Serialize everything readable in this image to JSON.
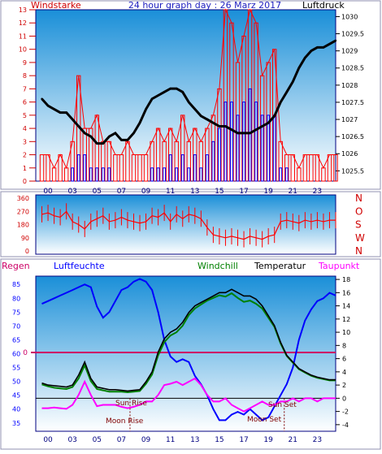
{
  "header": {
    "left_label": "Windstarke",
    "title": "24 hour graph day : 26 Marz 2017",
    "right_label": "Luftdruck"
  },
  "labels": {
    "regen": "Regen",
    "luftfeuchte": "Luftfeuchte",
    "windchill": "Windchill",
    "temperatur": "Temperatur",
    "taupunkt": "Taupunkt",
    "sun_rise": "Sun Rise",
    "moon_rise": "Moon Rise",
    "sun_set": "Sun Set",
    "moon_set": "Moon Set",
    "regen_zero": "0"
  },
  "colors": {
    "title": "#2020c0",
    "wind_axis": "#d00000",
    "wind_gust": "#ff0000",
    "wind_avg": "#0000ff",
    "pressure": "#000000",
    "direction": "#ff0000",
    "humidity": "#0000ff",
    "windchill": "#008000",
    "temperature": "#000000",
    "dewpoint": "#ff00ff",
    "rain": "#cc0066",
    "frame": "#000080",
    "sky_top": "#1a8fd8",
    "sky_bottom": "#ffffff"
  },
  "chart_data": [
    {
      "type": "line",
      "title": "24 hour graph day : 26 Marz 2017",
      "x_ticks": [
        "00",
        "03",
        "05",
        "07",
        "09",
        "11",
        "13",
        "15",
        "17",
        "19",
        "21",
        "23"
      ],
      "x_hours": [
        0.5,
        2.5,
        4.5,
        6.5,
        8.5,
        10.5,
        12.5,
        14.5,
        16.5,
        18.5,
        20.5,
        22.5
      ],
      "xlim": [
        -0.5,
        24
      ],
      "y_left": {
        "label": "Windstarke",
        "ticks": [
          "0",
          "1",
          "2",
          "3",
          "4",
          "5",
          "6",
          "7",
          "8",
          "9",
          "10",
          "11",
          "12",
          "13"
        ],
        "lim": [
          0,
          13
        ]
      },
      "y_right": {
        "label": "Luftdruck",
        "ticks": [
          "1025.5",
          "1026",
          "1026.5",
          "1027",
          "1027.5",
          "1028",
          "1028.5",
          "1029",
          "1029.5",
          "1030"
        ],
        "lim": [
          1025.2,
          1030.2
        ]
      },
      "series": [
        {
          "name": "Luftdruck",
          "axis": "right",
          "x": [
            0,
            0.5,
            1,
            1.5,
            2,
            2.5,
            3,
            3.5,
            4,
            4.5,
            5,
            5.5,
            6,
            6.5,
            7,
            7.5,
            8,
            8.5,
            9,
            9.5,
            10,
            10.5,
            11,
            11.5,
            12,
            12.5,
            13,
            13.5,
            14,
            14.5,
            15,
            15.5,
            16,
            16.5,
            17,
            17.5,
            18,
            18.5,
            19,
            19.5,
            20,
            20.5,
            21,
            21.5,
            22,
            22.5,
            23,
            23.5,
            24
          ],
          "y": [
            1027.6,
            1027.4,
            1027.3,
            1027.2,
            1027.2,
            1027.0,
            1026.8,
            1026.6,
            1026.5,
            1026.3,
            1026.3,
            1026.5,
            1026.6,
            1026.4,
            1026.4,
            1026.6,
            1026.9,
            1027.3,
            1027.6,
            1027.7,
            1027.8,
            1027.9,
            1027.9,
            1027.8,
            1027.5,
            1027.3,
            1027.1,
            1027.0,
            1026.9,
            1026.8,
            1026.8,
            1026.7,
            1026.6,
            1026.6,
            1026.6,
            1026.7,
            1026.8,
            1026.9,
            1027.1,
            1027.5,
            1027.8,
            1028.1,
            1028.5,
            1028.8,
            1029.0,
            1029.1,
            1029.1,
            1029.2,
            1029.3
          ]
        },
        {
          "name": "Windstarke Boen",
          "axis": "left",
          "x": [
            0,
            0.5,
            1,
            1.5,
            2,
            2.5,
            3,
            3.5,
            4,
            4.5,
            5,
            5.5,
            6,
            6.5,
            7,
            7.5,
            8,
            8.5,
            9,
            9.5,
            10,
            10.5,
            11,
            11.5,
            12,
            12.5,
            13,
            13.5,
            14,
            14.5,
            15,
            15.5,
            16,
            16.5,
            17,
            17.5,
            18,
            18.5,
            19,
            19.5,
            20,
            20.5,
            21,
            21.5,
            22,
            22.5,
            23,
            23.5,
            24
          ],
          "y": [
            2,
            2,
            1,
            2,
            1,
            3,
            8,
            4,
            4,
            5,
            3,
            3,
            2,
            2,
            3,
            2,
            2,
            2,
            3,
            4,
            3,
            4,
            3,
            5,
            3,
            4,
            3,
            4,
            5,
            7,
            13,
            12,
            9,
            11,
            13,
            12,
            8,
            9,
            10,
            3,
            2,
            2,
            1,
            2,
            2,
            2,
            1,
            2,
            2
          ]
        },
        {
          "name": "Windstarke Mittel",
          "axis": "left",
          "x": [
            0,
            0.5,
            1,
            1.5,
            2,
            2.5,
            3,
            3.5,
            4,
            4.5,
            5,
            5.5,
            6,
            6.5,
            7,
            7.5,
            8,
            8.5,
            9,
            9.5,
            10,
            10.5,
            11,
            11.5,
            12,
            12.5,
            13,
            13.5,
            14,
            14.5,
            15,
            15.5,
            16,
            16.5,
            17,
            17.5,
            18,
            18.5,
            19,
            19.5,
            20,
            20.5,
            21,
            21.5,
            22,
            22.5,
            23,
            23.5,
            24
          ],
          "y": [
            0,
            0,
            0,
            0,
            0,
            1,
            2,
            2,
            1,
            1,
            1,
            1,
            0,
            0,
            0,
            0,
            0,
            0,
            1,
            1,
            1,
            2,
            1,
            2,
            1,
            2,
            1,
            2,
            3,
            4,
            6,
            6,
            5,
            6,
            7,
            6,
            5,
            5,
            5,
            1,
            1,
            0,
            0,
            0,
            0,
            0,
            0,
            0,
            0
          ]
        }
      ]
    },
    {
      "type": "line",
      "x_ticks": [
        "00",
        "03",
        "05",
        "07",
        "09",
        "11",
        "13",
        "15",
        "17",
        "19",
        "21",
        "23"
      ],
      "xlim": [
        -0.5,
        24
      ],
      "y_left": {
        "ticks": [
          "0",
          "90",
          "180",
          "270",
          "360"
        ],
        "lim": [
          0,
          360
        ]
      },
      "y_right": {
        "ticks": [
          "N",
          "W",
          "S",
          "O",
          "N"
        ]
      },
      "series": [
        {
          "name": "Windrichtung",
          "x": [
            0,
            0.5,
            1,
            1.5,
            2,
            2.5,
            3,
            3.5,
            4,
            4.5,
            5,
            5.5,
            6,
            6.5,
            7,
            7.5,
            8,
            8.5,
            9,
            9.5,
            10,
            10.5,
            11,
            11.5,
            12,
            12.5,
            13,
            13.5,
            14,
            14.5,
            15,
            15.5,
            16,
            16.5,
            17,
            17.5,
            18,
            18.5,
            19,
            19.5,
            20,
            20.5,
            21,
            21.5,
            22,
            22.5,
            23,
            23.5,
            24
          ],
          "y": [
            250,
            260,
            240,
            230,
            270,
            200,
            180,
            150,
            200,
            220,
            240,
            200,
            210,
            230,
            210,
            200,
            190,
            200,
            240,
            230,
            260,
            200,
            250,
            220,
            250,
            240,
            220,
            160,
            110,
            100,
            90,
            100,
            90,
            80,
            100,
            90,
            80,
            100,
            110,
            200,
            210,
            200,
            190,
            210,
            200,
            210,
            200,
            210,
            210
          ]
        }
      ]
    },
    {
      "type": "line",
      "x_ticks": [
        "00",
        "03",
        "05",
        "07",
        "09",
        "11",
        "13",
        "15",
        "17",
        "19",
        "21",
        "23"
      ],
      "xlim": [
        -0.5,
        24
      ],
      "y_left": {
        "label": "Luftfeuchte",
        "ticks": [
          "35",
          "40",
          "45",
          "50",
          "55",
          "60",
          "65",
          "70",
          "75",
          "80",
          "85"
        ],
        "lim": [
          32,
          88
        ]
      },
      "y_right": {
        "label": "Temperatur",
        "ticks": [
          "-4",
          "-2",
          "0",
          "2",
          "4",
          "6",
          "8",
          "10",
          "12",
          "14",
          "16",
          "18"
        ],
        "lim": [
          -5,
          18.5
        ]
      },
      "series": [
        {
          "name": "Luftfeuchte",
          "axis": "left",
          "x": [
            0,
            0.5,
            1,
            1.5,
            2,
            2.5,
            3,
            3.5,
            4,
            4.5,
            5,
            5.5,
            6,
            6.5,
            7,
            7.5,
            8,
            8.5,
            9,
            9.5,
            10,
            10.5,
            11,
            11.5,
            12,
            12.5,
            13,
            13.5,
            14,
            14.5,
            15,
            15.5,
            16,
            16.5,
            17,
            17.5,
            18,
            18.5,
            19,
            19.5,
            20,
            20.5,
            21,
            21.5,
            22,
            22.5,
            23,
            23.5,
            24
          ],
          "y": [
            78,
            79,
            80,
            81,
            82,
            83,
            84,
            85,
            84,
            77,
            73,
            75,
            79,
            83,
            84,
            86,
            87,
            86,
            83,
            75,
            65,
            59,
            57,
            58,
            57,
            52,
            49,
            45,
            40,
            36,
            36,
            38,
            39,
            38,
            40,
            38,
            36,
            37,
            41,
            45,
            49,
            55,
            65,
            72,
            76,
            79,
            80,
            82,
            81
          ]
        },
        {
          "name": "Temperatur",
          "axis": "right",
          "x": [
            0,
            0.5,
            1,
            1.5,
            2,
            2.5,
            3,
            3.5,
            4,
            4.5,
            5,
            5.5,
            6,
            6.5,
            7,
            7.5,
            8,
            8.5,
            9,
            9.5,
            10,
            10.5,
            11,
            11.5,
            12,
            12.5,
            13,
            13.5,
            14,
            14.5,
            15,
            15.5,
            16,
            16.5,
            17,
            17.5,
            18,
            18.5,
            19,
            19.5,
            20,
            20.5,
            21,
            21.5,
            22,
            22.5,
            23,
            23.5,
            24
          ],
          "y": [
            2.3,
            2.0,
            1.9,
            1.8,
            1.7,
            2.0,
            3.5,
            5.5,
            3.0,
            1.7,
            1.5,
            1.3,
            1.3,
            1.2,
            1.1,
            1.2,
            1.3,
            2.5,
            4.0,
            7.0,
            9.0,
            10.0,
            10.5,
            11.5,
            13.0,
            14.0,
            14.5,
            15.0,
            15.5,
            16.0,
            16.0,
            16.5,
            16.0,
            15.5,
            15.5,
            15.0,
            14.0,
            12.5,
            11.0,
            8.5,
            6.5,
            5.5,
            4.5,
            4.0,
            3.5,
            3.2,
            3.0,
            2.8,
            2.8
          ]
        },
        {
          "name": "Windchill",
          "axis": "right",
          "x": [
            0,
            0.5,
            1,
            1.5,
            2,
            2.5,
            3,
            3.5,
            4,
            4.5,
            5,
            5.5,
            6,
            6.5,
            7,
            7.5,
            8,
            8.5,
            9,
            9.5,
            10,
            10.5,
            11,
            11.5,
            12,
            12.5,
            13,
            13.5,
            14,
            14.5,
            15,
            15.5,
            16,
            16.5,
            17,
            17.5,
            18,
            18.5,
            19,
            19.5,
            20,
            20.5,
            21,
            21.5,
            22,
            22.5,
            23,
            23.5,
            24
          ],
          "y": [
            2.1,
            1.8,
            1.6,
            1.5,
            1.4,
            1.7,
            3.0,
            5.0,
            2.6,
            1.4,
            1.2,
            1.0,
            1.0,
            1.0,
            0.9,
            1.0,
            1.1,
            2.2,
            3.6,
            6.5,
            8.5,
            9.5,
            10.0,
            11.0,
            12.6,
            13.6,
            14.2,
            14.8,
            15.2,
            15.6,
            15.4,
            15.9,
            15.2,
            14.6,
            14.8,
            14.3,
            13.6,
            12.2,
            10.8,
            8.3,
            6.4,
            5.4,
            4.4,
            3.9,
            3.4,
            3.1,
            2.9,
            2.7,
            2.7
          ]
        },
        {
          "name": "Taupunkt",
          "axis": "right",
          "x": [
            0,
            0.5,
            1,
            1.5,
            2,
            2.5,
            3,
            3.5,
            4,
            4.5,
            5,
            5.5,
            6,
            6.5,
            7,
            7.5,
            8,
            8.5,
            9,
            9.5,
            10,
            10.5,
            11,
            11.5,
            12,
            12.5,
            13,
            13.5,
            14,
            14.5,
            15,
            15.5,
            16,
            16.5,
            17,
            17.5,
            18,
            18.5,
            19,
            19.5,
            20,
            20.5,
            21,
            21.5,
            22,
            22.5,
            23,
            23.5,
            24
          ],
          "y": [
            -1.5,
            -1.5,
            -1.4,
            -1.5,
            -1.6,
            -1.0,
            0.5,
            2.5,
            0.5,
            -1.2,
            -1.0,
            -1.0,
            -1.0,
            -1.3,
            -1.5,
            -1.3,
            -1.0,
            -0.5,
            -0.5,
            0.5,
            2.0,
            2.2,
            2.5,
            2.0,
            2.5,
            3.0,
            2.0,
            0.5,
            -0.5,
            -0.5,
            0.0,
            -1.0,
            -1.5,
            -2.0,
            -1.5,
            -1.0,
            -0.5,
            -1.0,
            -1.0,
            -0.5,
            -0.5,
            0.0,
            -0.5,
            0.0,
            0.0,
            -0.5,
            0.0,
            0.0,
            0.0
          ]
        }
      ],
      "regen_value": 0
    }
  ]
}
